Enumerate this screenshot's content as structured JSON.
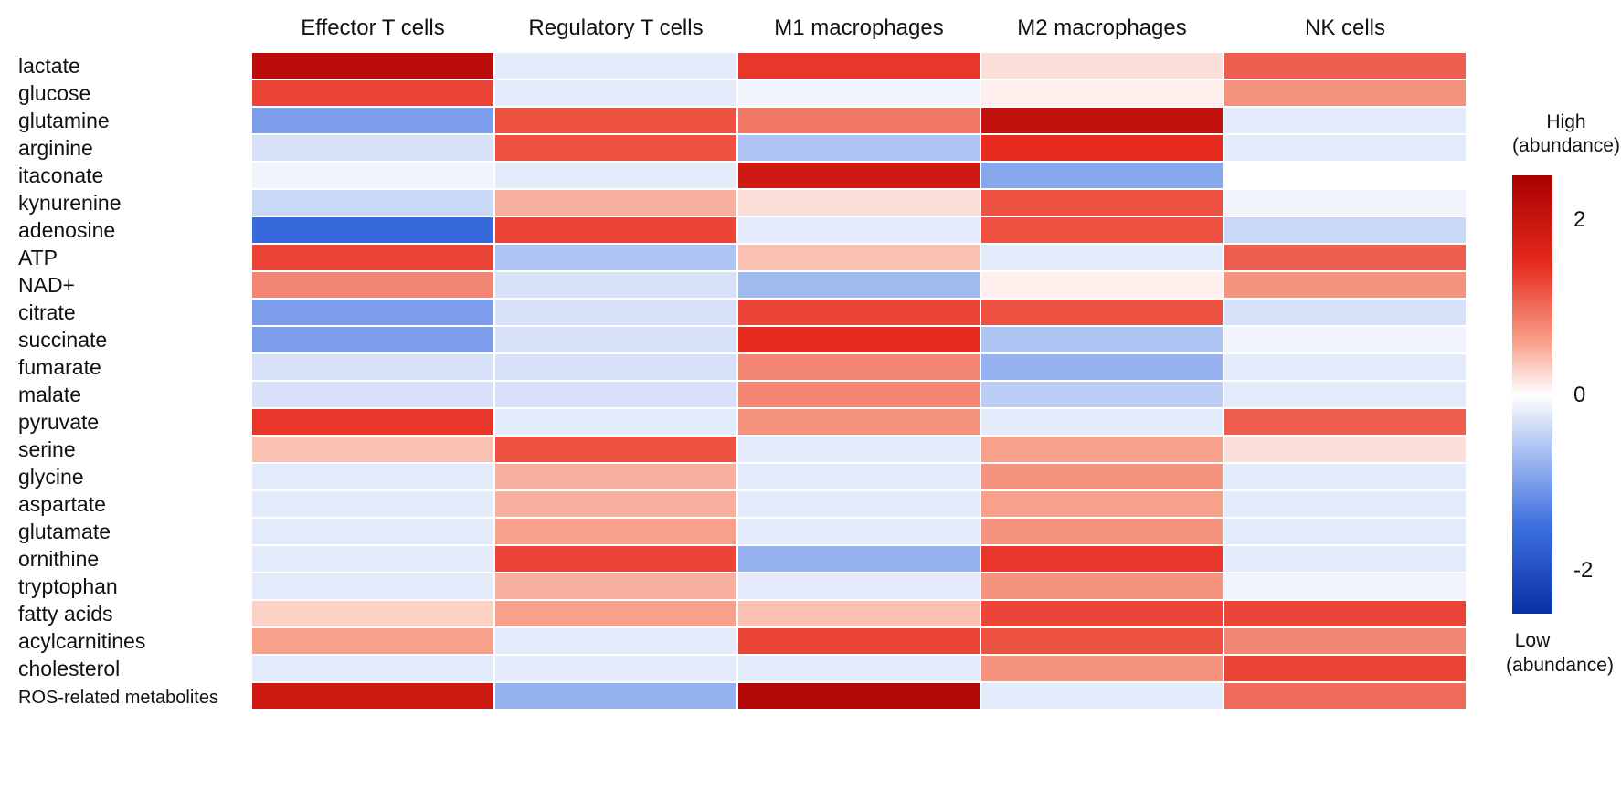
{
  "chart_data": {
    "type": "heatmap",
    "columns": [
      "Effector T cells",
      "Regulatory T cells",
      "M1 macrophages",
      "M2 macrophages",
      "NK cells"
    ],
    "rows": [
      "lactate",
      "glucose",
      "glutamine",
      "arginine",
      "itaconate",
      "kynurenine",
      "adenosine",
      "ATP",
      "NAD+",
      "citrate",
      "succinate",
      "fumarate",
      "malate",
      "pyruvate",
      "serine",
      "glycine",
      "aspartate",
      "glutamate",
      "ornithine",
      "tryptophan",
      "fatty acids",
      "acylcarnitines",
      "cholesterol",
      "ROS-related metabolites"
    ],
    "values": [
      [
        2.2,
        -0.2,
        1.4,
        0.2,
        1.1
      ],
      [
        1.3,
        -0.2,
        -0.1,
        0.1,
        0.7
      ],
      [
        -1.0,
        1.2,
        0.9,
        2.1,
        -0.2
      ],
      [
        -0.3,
        1.2,
        -0.6,
        1.5,
        -0.2
      ],
      [
        -0.1,
        -0.2,
        1.9,
        -0.9,
        0.0
      ],
      [
        -0.4,
        0.5,
        0.2,
        1.2,
        -0.1
      ],
      [
        -1.6,
        1.3,
        -0.2,
        1.2,
        -0.4
      ],
      [
        1.3,
        -0.6,
        0.4,
        -0.2,
        1.1
      ],
      [
        0.8,
        -0.3,
        -0.7,
        0.1,
        0.7
      ],
      [
        -1.0,
        -0.3,
        1.3,
        1.2,
        -0.3
      ],
      [
        -1.0,
        -0.3,
        1.5,
        -0.6,
        -0.1
      ],
      [
        -0.3,
        -0.3,
        0.8,
        -0.8,
        -0.2
      ],
      [
        -0.3,
        -0.3,
        0.8,
        -0.5,
        -0.2
      ],
      [
        1.4,
        -0.2,
        0.7,
        -0.2,
        1.1
      ],
      [
        0.4,
        1.2,
        -0.2,
        0.6,
        0.2
      ],
      [
        -0.2,
        0.5,
        -0.2,
        0.7,
        -0.2
      ],
      [
        -0.2,
        0.5,
        -0.2,
        0.6,
        -0.2
      ],
      [
        -0.2,
        0.6,
        -0.2,
        0.7,
        -0.2
      ],
      [
        -0.2,
        1.3,
        -0.8,
        1.4,
        -0.2
      ],
      [
        -0.2,
        0.5,
        -0.2,
        0.7,
        -0.1
      ],
      [
        0.3,
        0.6,
        0.4,
        1.3,
        1.3
      ],
      [
        0.6,
        -0.2,
        1.3,
        1.2,
        0.8
      ],
      [
        -0.2,
        -0.2,
        -0.2,
        0.7,
        1.3
      ],
      [
        1.9,
        -0.8,
        2.3,
        -0.2,
        1.0
      ]
    ],
    "colorbar": {
      "min": -2.5,
      "max": 2.5,
      "ticks": [
        2,
        0,
        -2
      ],
      "tick_labels": [
        "2",
        "0",
        "-2"
      ],
      "high_label_line1": "High",
      "high_label_line2": "(abundance)",
      "low_label_line1": "Low",
      "low_label_line2": "(abundance)"
    },
    "colormap": {
      "low": "#0a30a8",
      "mid": "#ffffff",
      "high": "#a80000"
    }
  }
}
